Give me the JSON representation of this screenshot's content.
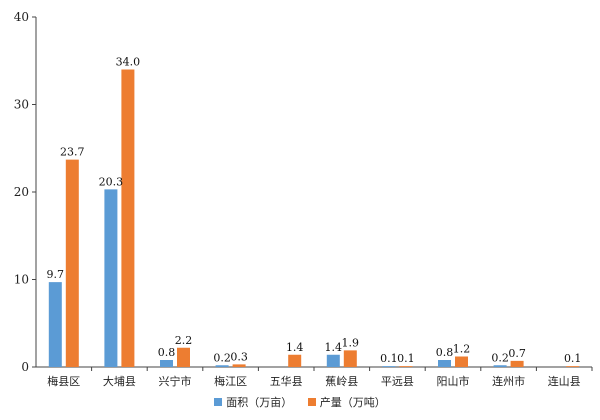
{
  "chart_data": {
    "type": "bar",
    "title": "",
    "xlabel": "",
    "ylabel": "",
    "ylim": [
      0,
      40
    ],
    "yticks": [
      0,
      10,
      20,
      30,
      40
    ],
    "grid": false,
    "legend_position": "bottom-center",
    "categories": [
      "梅县区",
      "大埔县",
      "兴宁市",
      "梅江区",
      "五华县",
      "蕉岭县",
      "平远县",
      "阳山市",
      "连州市",
      "连山县"
    ],
    "series": [
      {
        "name": "面积（万亩）",
        "color": "#5b9bd5",
        "values": [
          9.7,
          20.3,
          0.8,
          0.2,
          null,
          1.4,
          0.1,
          0.8,
          0.2,
          null
        ]
      },
      {
        "name": "产量（万吨）",
        "color": "#ed7d31",
        "values": [
          23.7,
          34.0,
          2.2,
          0.3,
          1.4,
          1.9,
          0.1,
          1.2,
          0.7,
          0.1
        ]
      }
    ]
  }
}
